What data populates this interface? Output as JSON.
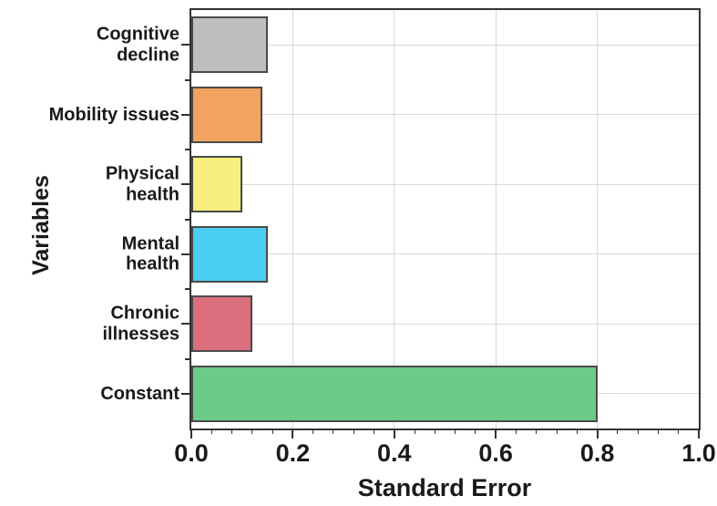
{
  "chart_data": {
    "type": "bar",
    "orientation": "horizontal",
    "title": "",
    "xlabel": "Standard Error",
    "ylabel": "Variables",
    "categories": [
      "Cognitive\ndecline",
      "Mobility issues",
      "Physical\nhealth",
      "Mental\nhealth",
      "Chronic\nillnesses",
      "Constant"
    ],
    "values": [
      0.15,
      0.14,
      0.1,
      0.15,
      0.12,
      0.8
    ],
    "bar_colors": [
      "#BEBEBE",
      "#F1A35F",
      "#F6EE7D",
      "#49CDF2",
      "#DB6F7E",
      "#6BCB89"
    ],
    "bar_border_color": "#4A4A4A",
    "xlim": [
      0.0,
      1.0
    ],
    "x_tick_labels": [
      "0.0",
      "0.2",
      "0.4",
      "0.6",
      "0.8",
      "1.0"
    ],
    "x_major_ticks": [
      0.0,
      0.2,
      0.4,
      0.6,
      0.8,
      1.0
    ],
    "x_minor_ticks_per_interval": 4,
    "grid": "on",
    "gridline_color": "#D8D8D8",
    "axis_color": "#333333",
    "legend": "none"
  }
}
